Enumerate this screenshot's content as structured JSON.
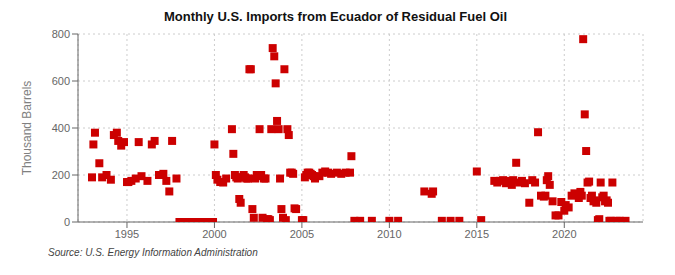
{
  "chart_data": {
    "type": "scatter",
    "title": "Monthly U.S. Imports from Ecuador of Residual Fuel Oil",
    "ylabel": "Thousand Barrels",
    "annotations": [
      "Source: U.S. Energy Information Administration"
    ],
    "color": "#cc0000",
    "marker": "square",
    "grid": true,
    "xlim": [
      1992.2,
      2024.5
    ],
    "xticks": [
      1995,
      2000,
      2005,
      2010,
      2015,
      2020
    ],
    "ylim": [
      0,
      800
    ],
    "yticks": [
      0,
      200,
      400,
      600,
      800
    ],
    "x": [
      1993.0,
      1993.08,
      1993.17,
      1993.42,
      1993.58,
      1993.83,
      1994.08,
      1994.25,
      1994.42,
      1994.5,
      1994.67,
      1994.83,
      1995.0,
      1995.08,
      1995.25,
      1995.5,
      1995.67,
      1995.83,
      1996.17,
      1996.42,
      1996.58,
      1996.83,
      1997.08,
      1997.25,
      1997.42,
      1997.58,
      1997.83,
      1998.0,
      1998.08,
      1998.17,
      1998.25,
      1998.33,
      1998.42,
      1998.5,
      1998.58,
      1998.67,
      1998.75,
      1998.83,
      1998.92,
      1999.0,
      1999.08,
      1999.17,
      1999.25,
      1999.33,
      1999.42,
      1999.5,
      1999.58,
      1999.67,
      1999.75,
      1999.83,
      1999.92,
      2000.0,
      2000.08,
      2000.17,
      2000.33,
      2000.5,
      2000.67,
      2001.0,
      2001.08,
      2001.17,
      2001.25,
      2001.33,
      2001.42,
      2001.5,
      2001.58,
      2001.67,
      2001.75,
      2001.83,
      2001.92,
      2002.0,
      2002.08,
      2002.17,
      2002.25,
      2002.33,
      2002.42,
      2002.5,
      2002.58,
      2002.67,
      2002.75,
      2002.83,
      2002.92,
      2003.0,
      2003.08,
      2003.17,
      2003.25,
      2003.33,
      2003.42,
      2003.5,
      2003.58,
      2003.67,
      2003.75,
      2003.83,
      2003.92,
      2004.0,
      2004.08,
      2004.17,
      2004.25,
      2004.33,
      2004.42,
      2004.5,
      2004.58,
      2004.67,
      2005.0,
      2005.08,
      2005.17,
      2005.25,
      2005.33,
      2005.42,
      2005.5,
      2005.58,
      2005.67,
      2005.75,
      2006.0,
      2006.17,
      2006.33,
      2006.5,
      2006.67,
      2007.0,
      2007.25,
      2007.5,
      2007.75,
      2007.83,
      2008.0,
      2008.33,
      2009.0,
      2010.0,
      2010.5,
      2012.0,
      2012.42,
      2012.5,
      2013.0,
      2013.5,
      2014.0,
      2015.0,
      2015.25,
      2016.0,
      2016.17,
      2016.33,
      2016.5,
      2016.67,
      2016.83,
      2017.0,
      2017.08,
      2017.25,
      2017.42,
      2017.58,
      2017.75,
      2018.0,
      2018.17,
      2018.33,
      2018.5,
      2018.67,
      2018.83,
      2018.92,
      2019.0,
      2019.08,
      2019.17,
      2019.33,
      2019.5,
      2019.67,
      2019.83,
      2020.0,
      2020.08,
      2020.25,
      2020.42,
      2020.58,
      2020.75,
      2020.83,
      2020.92,
      2021.0,
      2021.08,
      2021.17,
      2021.25,
      2021.33,
      2021.42,
      2021.5,
      2021.58,
      2021.67,
      2021.75,
      2021.83,
      2021.92,
      2022.0,
      2022.08,
      2022.17,
      2022.25,
      2022.33,
      2022.42,
      2022.5,
      2022.58,
      2022.67,
      2022.75,
      2023.0,
      2023.17,
      2023.5
    ],
    "values": [
      190,
      330,
      380,
      250,
      190,
      200,
      180,
      370,
      380,
      345,
      325,
      340,
      170,
      170,
      175,
      185,
      340,
      195,
      175,
      330,
      345,
      200,
      205,
      175,
      130,
      345,
      185,
      0,
      0,
      0,
      0,
      0,
      0,
      0,
      0,
      0,
      0,
      0,
      0,
      0,
      0,
      0,
      0,
      0,
      0,
      0,
      0,
      0,
      0,
      0,
      0,
      330,
      200,
      180,
      170,
      168,
      185,
      395,
      290,
      200,
      190,
      185,
      98,
      82,
      190,
      200,
      190,
      185,
      185,
      650,
      650,
      55,
      18,
      185,
      200,
      195,
      395,
      200,
      18,
      185,
      185,
      12,
      12,
      8,
      395,
      740,
      705,
      590,
      430,
      395,
      185,
      55,
      18,
      650,
      8,
      395,
      370,
      210,
      210,
      205,
      58,
      55,
      8,
      8,
      190,
      200,
      210,
      210,
      205,
      200,
      195,
      185,
      195,
      210,
      215,
      210,
      205,
      210,
      205,
      210,
      210,
      280,
      5,
      5,
      5,
      5,
      5,
      130,
      120,
      130,
      5,
      5,
      5,
      215,
      8,
      175,
      168,
      175,
      178,
      165,
      175,
      158,
      178,
      252,
      168,
      175,
      165,
      82,
      178,
      168,
      382,
      112,
      108,
      112,
      178,
      195,
      158,
      88,
      28,
      28,
      85,
      48,
      72,
      62,
      112,
      122,
      118,
      102,
      128,
      112,
      778,
      458,
      302,
      168,
      172,
      102,
      112,
      88,
      92,
      82,
      8,
      12,
      168,
      105,
      112,
      88,
      92,
      82,
      5,
      5,
      168,
      5,
      5,
      5
    ]
  }
}
